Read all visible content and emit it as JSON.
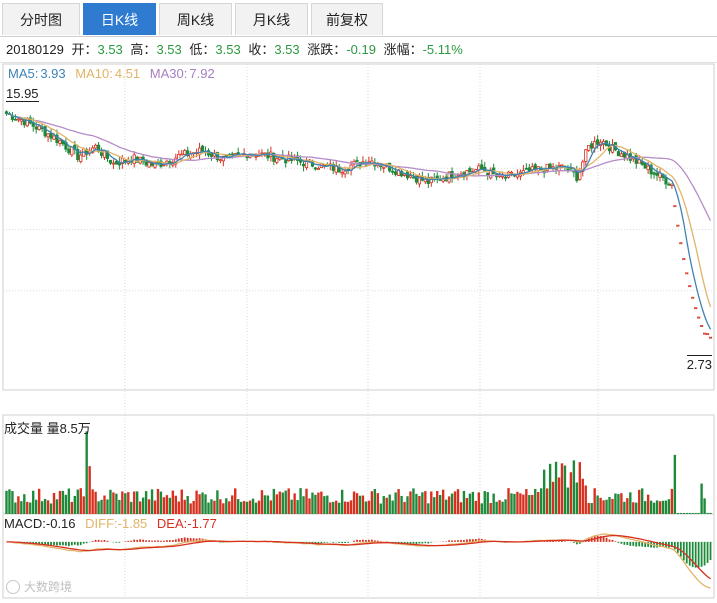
{
  "tabs": [
    {
      "label": "分时图",
      "active": false
    },
    {
      "label": "日K线",
      "active": true
    },
    {
      "label": "周K线",
      "active": false
    },
    {
      "label": "月K线",
      "active": false
    },
    {
      "label": "前复权",
      "active": false
    }
  ],
  "quote": {
    "date": "20180129",
    "open_label": "开：",
    "open": "3.53",
    "high_label": "高：",
    "high": "3.53",
    "low_label": "低：",
    "low": "3.53",
    "close_label": "收：",
    "close": "3.53",
    "change_label": "涨跌：",
    "change": "-0.19",
    "pct_label": "涨幅：",
    "pct": "-5.11%"
  },
  "ma_legend": {
    "ma5_label": "MA5: ",
    "ma5": "3.93",
    "ma10_label": "MA10: ",
    "ma10": "4.51",
    "ma30_label": "MA30: ",
    "ma30": "7.92"
  },
  "price_axis": {
    "high_label": "15.95",
    "low_label": "2.73"
  },
  "volume_legend": {
    "label": "成交量",
    "value_label": "量8.5万"
  },
  "macd_legend": {
    "macd_label": "MACD: ",
    "macd": "-0.16",
    "diff_label": "DIFF: ",
    "diff": "-1.85",
    "dea_label": "DEA: ",
    "dea": "-1.77"
  },
  "watermark": "大数跨境",
  "colors": {
    "up": "#d8301f",
    "down": "#1d8a3a",
    "ma5": "#3e83b4",
    "ma10": "#e0b468",
    "ma30": "#b58cc9",
    "grid": "#dadada",
    "tab_active": "#2e7bcf"
  },
  "chart_data": {
    "type": "candlestick",
    "price_range": [
      2.73,
      15.95
    ],
    "anchors": [
      [
        0,
        15.6
      ],
      [
        6,
        15.2
      ],
      [
        12,
        14.7
      ],
      [
        18,
        14.1
      ],
      [
        24,
        13.3
      ],
      [
        30,
        13.8
      ],
      [
        36,
        12.9
      ],
      [
        42,
        13.2
      ],
      [
        50,
        12.8
      ],
      [
        58,
        13.3
      ],
      [
        66,
        13.6
      ],
      [
        74,
        13.1
      ],
      [
        82,
        13.5
      ],
      [
        92,
        13.2
      ],
      [
        102,
        12.9
      ],
      [
        112,
        12.6
      ],
      [
        122,
        13.1
      ],
      [
        132,
        12.5
      ],
      [
        142,
        11.9
      ],
      [
        152,
        12.4
      ],
      [
        160,
        12.6
      ],
      [
        166,
        12.1
      ],
      [
        172,
        12.3
      ],
      [
        180,
        12.6
      ],
      [
        188,
        12.7
      ],
      [
        192,
        12.2
      ],
      [
        196,
        13.8
      ],
      [
        200,
        14.2
      ],
      [
        204,
        13.7
      ],
      [
        208,
        13.4
      ],
      [
        212,
        13.0
      ],
      [
        216,
        12.6
      ],
      [
        220,
        12.2
      ],
      [
        224,
        11.8
      ]
    ],
    "ma_final": {
      "ma5": 3.93,
      "ma10": 4.51,
      "ma30": 7.92
    },
    "volume_max": 85000,
    "last": {
      "close": 3.53,
      "change": -0.19,
      "pct": -5.11
    }
  }
}
